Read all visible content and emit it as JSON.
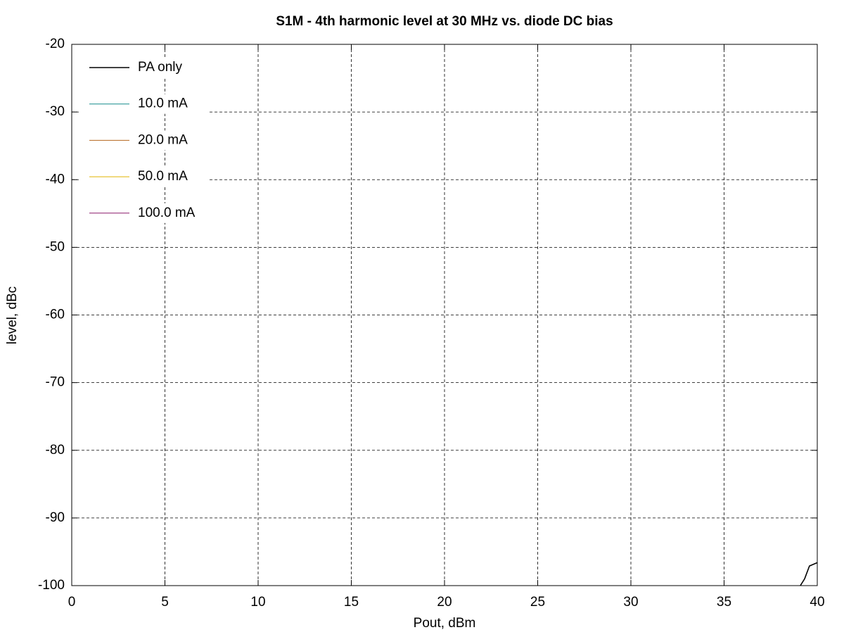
{
  "chart_data": {
    "type": "line",
    "title": "S1M - 4th harmonic level at 30 MHz vs. diode DC bias",
    "x_label": "Pout, dBm",
    "y_label": "level, dBc",
    "x": [
      39.09,
      39.32,
      39.58,
      40
    ],
    "series": [
      {
        "name": "PA only",
        "color": "#000000",
        "values": [
          -100,
          -99,
          -97.1,
          -96.6
        ]
      },
      {
        "name": "10.0 mA",
        "color": "#148c8c",
        "values": [
          null,
          null,
          null,
          null
        ]
      },
      {
        "name": "20.0 mA",
        "color": "#b5651d",
        "values": [
          null,
          null,
          null,
          null
        ]
      },
      {
        "name": "50.0 mA",
        "color": "#e0b400",
        "values": [
          null,
          null,
          null,
          null
        ]
      },
      {
        "name": "100.0 mA",
        "color": "#8b1a6b",
        "values": [
          null,
          null,
          null,
          null
        ]
      }
    ],
    "xlim": [
      0,
      40
    ],
    "xticks": [
      0,
      5,
      10,
      15,
      20,
      25,
      30,
      35,
      40
    ],
    "ylim": [
      -100,
      -20
    ],
    "yticks": [
      -100,
      -90,
      -80,
      -70,
      -60,
      -50,
      -40,
      -30,
      -20
    ],
    "grid": true,
    "legend": "top-left"
  }
}
